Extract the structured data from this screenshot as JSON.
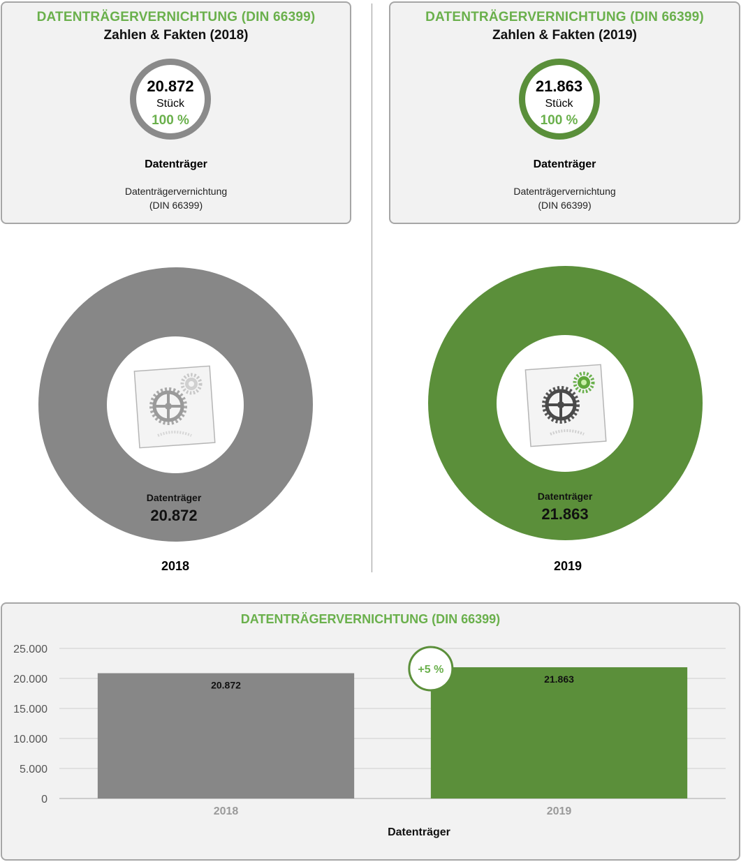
{
  "cards": [
    {
      "title": "DATENTRÄGERVERNICHTUNG (DIN 66399)",
      "subtitle": "Zahlen & Fakten (2018)",
      "count": "20.872",
      "unit": "Stück",
      "percent": "100 %",
      "label": "Datenträger",
      "desc_line1": "Datenträgervernichtung",
      "desc_line2": "(DIN 66399)"
    },
    {
      "title": "DATENTRÄGERVERNICHTUNG (DIN 66399)",
      "subtitle": "Zahlen & Fakten (2019)",
      "count": "21.863",
      "unit": "Stück",
      "percent": "100 %",
      "label": "Datenträger",
      "desc_line1": "Datenträgervernichtung",
      "desc_line2": "(DIN 66399)"
    }
  ],
  "donuts": [
    {
      "label": "Datenträger",
      "value": "20.872",
      "year": "2018",
      "color": "#878787",
      "icon": "gears-icon"
    },
    {
      "label": "Datenträger",
      "value": "21.863",
      "year": "2019",
      "color": "#5b8f3a",
      "icon": "gears-icon"
    }
  ],
  "chart_data": {
    "type": "bar",
    "title": "DATENTRÄGERVERNICHTUNG (DIN 66399)",
    "xlabel": "Datenträger",
    "ylabel": "",
    "categories": [
      "2018",
      "2019"
    ],
    "values": [
      20872,
      21863
    ],
    "value_labels": [
      "20.872",
      "21.863"
    ],
    "bar_colors": [
      "#878787",
      "#5b8f3a"
    ],
    "ylim": [
      0,
      25000
    ],
    "yticks": [
      0,
      5000,
      10000,
      15000,
      20000,
      25000
    ],
    "ytick_labels": [
      "0",
      "5.000",
      "10.000",
      "15.000",
      "20.000",
      "25.000"
    ],
    "grid": true,
    "annotation": "+5 %"
  }
}
